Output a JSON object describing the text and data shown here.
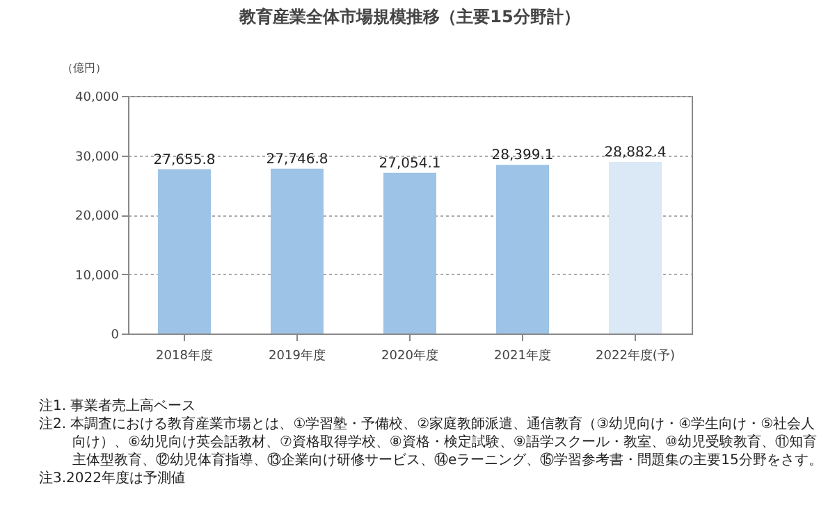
{
  "chart_data": {
    "type": "bar",
    "title": "教育産業全体市場規模推移（主要15分野計）",
    "ylabel": "（億円）",
    "categories": [
      "2018年度",
      "2019年度",
      "2020年度",
      "2021年度",
      "2022年度(予)"
    ],
    "values": [
      27655.8,
      27746.8,
      27054.1,
      28399.1,
      28882.4
    ],
    "colors": [
      "#9dc3e6",
      "#9dc3e6",
      "#9dc3e6",
      "#9dc3e6",
      "#dbe8f5"
    ],
    "ylim": [
      0,
      40000
    ],
    "yticks": [
      0,
      {
        "value": 10000,
        "label": "10,000"
      },
      {
        "value": 20000,
        "label": "20,000"
      },
      {
        "value": 30000,
        "label": "30,000"
      },
      {
        "value": 40000,
        "label": "40,000"
      }
    ],
    "grid": "y",
    "legend": false,
    "value_labels": [
      "27,655.8",
      "27,746.8",
      "27,054.1",
      "28,399.1",
      "28,882.4"
    ],
    "annotations": [
      "注1. 事業者売上高ベース",
      "注2. 本調査における教育産業市場とは、①学習塾・予備校、②家庭教師派遣、通信教育（③幼児向け・④学生向け・⑤社会人向け）、⑥幼児向け英会話教材、⑦資格取得学校、⑧資格・検定試験、⑨語学スクール・教室、⑩幼児受験教育、⑪知育主体型教育、⑫幼児体育指導、⑬企業向け研修サービス、⑭eラーニング、⑮学習参考書・問題集の主要15分野をさす。",
      "注3.2022年度は予測値"
    ]
  }
}
